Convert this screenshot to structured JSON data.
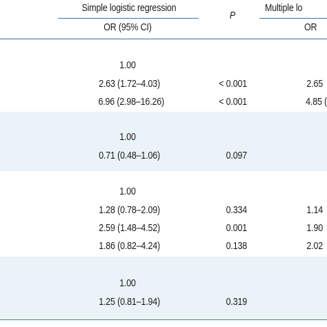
{
  "header": {
    "simple_group": "Simple logistic regression",
    "multiple_group": "Multiple lo",
    "p_label": "P",
    "simple_or": "OR (95% CI)",
    "multiple_or": "OR"
  },
  "groups": [
    {
      "rows": [
        {
          "or": "1.00",
          "p": "",
          "mult": ""
        },
        {
          "or": "2.63 (1.72–4.03)",
          "p": "< 0.001",
          "mult": "2.65"
        },
        {
          "or": "6.96 (2.98–16.26)",
          "p": "< 0.001",
          "mult": "4.85 ("
        }
      ]
    },
    {
      "rows": [
        {
          "or": "1.00",
          "p": "",
          "mult": ""
        },
        {
          "or": "0.71 (0.48–1.06)",
          "p": "0.097",
          "mult": ""
        }
      ]
    },
    {
      "rows": [
        {
          "or": "1.00",
          "p": "",
          "mult": ""
        },
        {
          "or": "1.28 (0.78–2.09)",
          "p": "0.334",
          "mult": "1.14"
        },
        {
          "or": "2.59 (1.48–4.52)",
          "p": "0.001",
          "mult": "1.90"
        },
        {
          "or": "1.86 (0.82–4.24)",
          "p": "0.138",
          "mult": "2.02"
        }
      ]
    },
    {
      "rows": [
        {
          "or": "1.00",
          "p": "",
          "mult": ""
        },
        {
          "or": "1.25 (0.81–1.94)",
          "p": "0.319",
          "mult": ""
        }
      ]
    }
  ]
}
